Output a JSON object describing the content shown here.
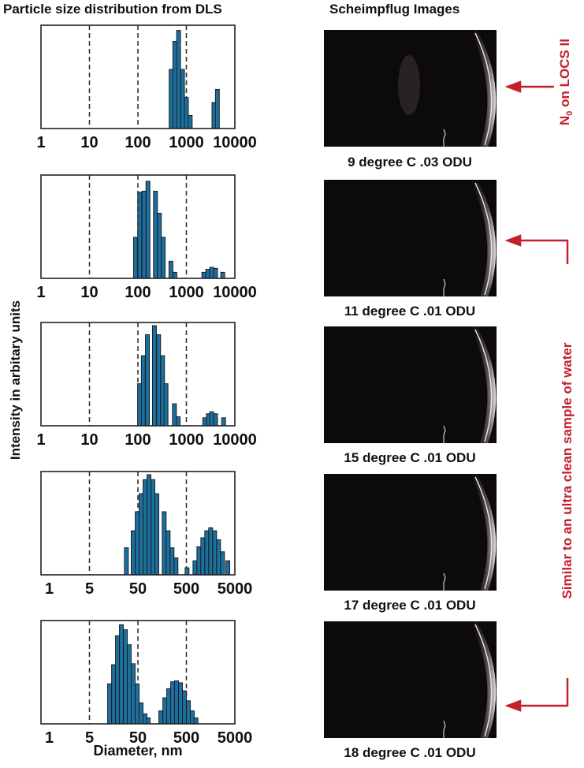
{
  "headers": {
    "left": "Particle size distribution from DLS",
    "right": "Scheimpflug Images"
  },
  "annotations": {
    "top": {
      "main": "N",
      "sub": "0",
      "rest": " on LOCS II"
    },
    "bracket": "Similar to an ultra clean sample of water",
    "color": "#c3202c"
  },
  "captions": [
    "9 degree C .03 ODU",
    "11 degree C .01 ODU",
    "15 degree C .01 ODU",
    "17 degree C .01 ODU",
    "18 degree C .01 ODU"
  ],
  "chart_data": [
    {
      "type": "bar",
      "xscale": "log",
      "xlim": [
        1,
        10000
      ],
      "ylabel": "Intensity in arbitary units",
      "ticks": [
        1,
        10,
        100,
        1000,
        10000
      ],
      "tick_labels": [
        "1",
        "10",
        "100",
        "1000",
        "10000"
      ],
      "dashed_lines": [
        10,
        100,
        1000
      ],
      "bar_color": "#1e6f9c",
      "bars": [
        [
          484,
          0.59
        ],
        [
          577,
          0.87
        ],
        [
          689,
          0.98
        ],
        [
          832,
          0.59
        ],
        [
          1000,
          0.31
        ],
        [
          1200,
          0.13
        ],
        [
          3700,
          0.26
        ],
        [
          4360,
          0.39
        ]
      ]
    },
    {
      "type": "bar",
      "xscale": "log",
      "xlim": [
        1,
        10000
      ],
      "ticks": [
        1,
        10,
        100,
        1000,
        10000
      ],
      "tick_labels": [
        "1",
        "10",
        "100",
        "1000",
        "10000"
      ],
      "dashed_lines": [
        10,
        100,
        1000
      ],
      "bar_color": "#1e6f9c",
      "bars": [
        [
          89,
          0.41
        ],
        [
          109,
          0.86
        ],
        [
          133,
          0.87
        ],
        [
          161,
          0.97
        ],
        [
          230,
          0.87
        ],
        [
          277,
          0.65
        ],
        [
          332,
          0.41
        ],
        [
          480,
          0.17
        ],
        [
          578,
          0.06
        ],
        [
          2290,
          0.06
        ],
        [
          2760,
          0.09
        ],
        [
          3330,
          0.11
        ],
        [
          4000,
          0.1
        ],
        [
          5620,
          0.06
        ]
      ]
    },
    {
      "type": "bar",
      "xscale": "log",
      "xlim": [
        1,
        10000
      ],
      "ticks": [
        1,
        10,
        100,
        1000,
        10000
      ],
      "tick_labels": [
        "1",
        "10",
        "100",
        "1000",
        "10000"
      ],
      "dashed_lines": [
        10,
        100,
        1000
      ],
      "bar_color": "#1e6f9c",
      "bars": [
        [
          108,
          0.42
        ],
        [
          129,
          0.7
        ],
        [
          157,
          0.91
        ],
        [
          219,
          1.0
        ],
        [
          267,
          0.91
        ],
        [
          322,
          0.7
        ],
        [
          380,
          0.42
        ],
        [
          566,
          0.22
        ],
        [
          675,
          0.09
        ],
        [
          2390,
          0.08
        ],
        [
          2840,
          0.12
        ],
        [
          3330,
          0.14
        ],
        [
          4000,
          0.12
        ],
        [
          5860,
          0.08
        ]
      ]
    },
    {
      "type": "bar",
      "xscale": "log",
      "xlim": [
        0.5,
        5000
      ],
      "ticks": [
        1,
        5,
        50,
        500,
        5000
      ],
      "tick_labels": [
        "1",
        "5",
        "50",
        "500",
        "5000"
      ],
      "dashed_lines": [
        5,
        50,
        500
      ],
      "bar_color": "#1e6f9c",
      "bars": [
        [
          28.9,
          0.27
        ],
        [
          39.9,
          0.44
        ],
        [
          48.2,
          0.63
        ],
        [
          58.1,
          0.81
        ],
        [
          70,
          0.95
        ],
        [
          84.5,
          1.0
        ],
        [
          102,
          0.95
        ],
        [
          123,
          0.81
        ],
        [
          174,
          0.63
        ],
        [
          210,
          0.44
        ],
        [
          253,
          0.27
        ],
        [
          305,
          0.17
        ],
        [
          516,
          0.07
        ],
        [
          750,
          0.14
        ],
        [
          904,
          0.28
        ],
        [
          1090,
          0.37
        ],
        [
          1315,
          0.44
        ],
        [
          1585,
          0.47
        ],
        [
          1914,
          0.44
        ],
        [
          2307,
          0.35
        ],
        [
          2780,
          0.23
        ],
        [
          3573,
          0.14
        ]
      ]
    },
    {
      "type": "bar",
      "xscale": "log",
      "xlim": [
        0.5,
        5000
      ],
      "xlabel": "Diameter, nm",
      "ticks": [
        1,
        5,
        50,
        500,
        5000
      ],
      "tick_labels": [
        "1",
        "5",
        "50",
        "500",
        "5000"
      ],
      "dashed_lines": [
        5,
        50,
        500
      ],
      "bar_color": "#1e6f9c",
      "bars": [
        [
          13,
          0.4
        ],
        [
          15.7,
          0.59
        ],
        [
          18.9,
          0.88
        ],
        [
          22.8,
          0.99
        ],
        [
          27.5,
          0.94
        ],
        [
          33.1,
          0.79
        ],
        [
          39.9,
          0.6
        ],
        [
          48.2,
          0.4
        ],
        [
          58.1,
          0.21
        ],
        [
          70,
          0.1
        ],
        [
          81.3,
          0.06
        ],
        [
          148,
          0.13
        ],
        [
          179,
          0.26
        ],
        [
          215,
          0.35
        ],
        [
          260,
          0.42
        ],
        [
          313,
          0.43
        ],
        [
          378,
          0.41
        ],
        [
          455,
          0.33
        ],
        [
          549,
          0.23
        ],
        [
          662,
          0.13
        ],
        [
          789,
          0.06
        ]
      ]
    }
  ]
}
